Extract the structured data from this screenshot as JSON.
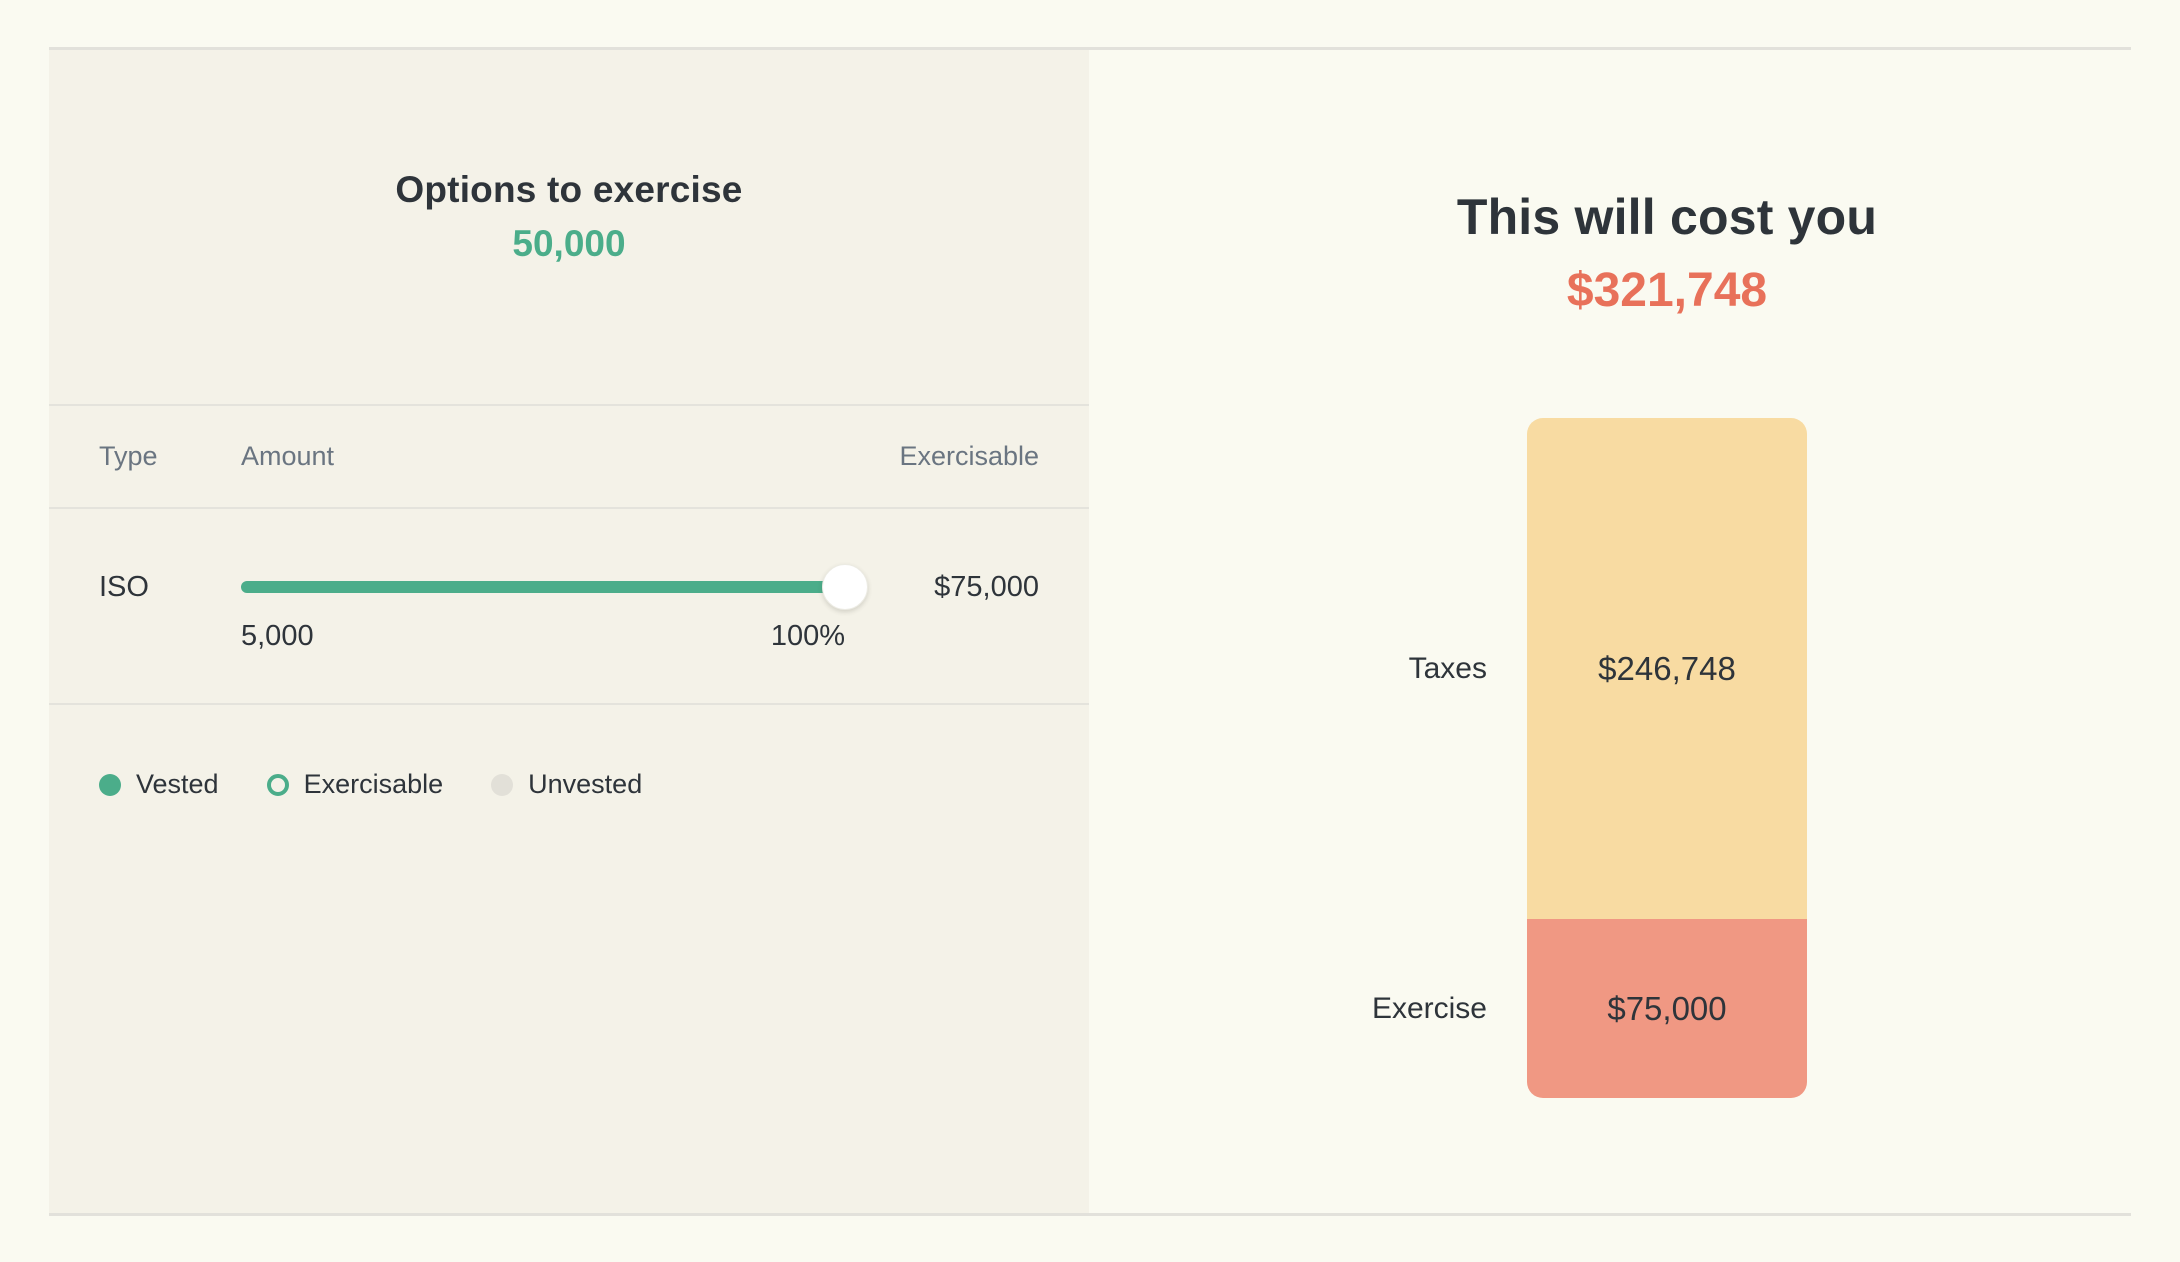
{
  "left_panel": {
    "title": "Options to exercise",
    "total_options": "50,000",
    "table": {
      "headers": {
        "type": "Type",
        "amount": "Amount",
        "exercisable": "Exercisable"
      },
      "row": {
        "type": "ISO",
        "slider_min_label": "5,000",
        "slider_pct_label": "100%",
        "slider_value_pct": 100,
        "exercisable_cost": "$75,000"
      }
    },
    "legend": {
      "vested": "Vested",
      "exercisable": "Exercisable",
      "unvested": "Unvested"
    }
  },
  "right_panel": {
    "title": "This will cost you",
    "total_cost": "$321,748"
  },
  "chart_data": {
    "type": "bar",
    "stacked": true,
    "orientation": "vertical-single-stack",
    "categories": [
      "Taxes",
      "Exercise"
    ],
    "values": [
      246748,
      75000
    ],
    "labels": [
      "$246,748",
      "$75,000"
    ],
    "total": 321748,
    "total_label": "$321,748",
    "colors": [
      "#F8DBA2",
      "#F09883"
    ],
    "legend_position": "none",
    "grid": false
  },
  "colors": {
    "page_bg": "#FAFAF1",
    "panel_bg": "#F4F2E8",
    "border": "#E2E1DB",
    "text_dark": "#2E343A",
    "text_gray": "#6A7581",
    "accent_green": "#4BAD8A",
    "accent_coral": "#E8715A",
    "bar_yellow": "#F8DBA2",
    "bar_coral": "#F09883",
    "unvested_gray": "#E2E0D8"
  }
}
